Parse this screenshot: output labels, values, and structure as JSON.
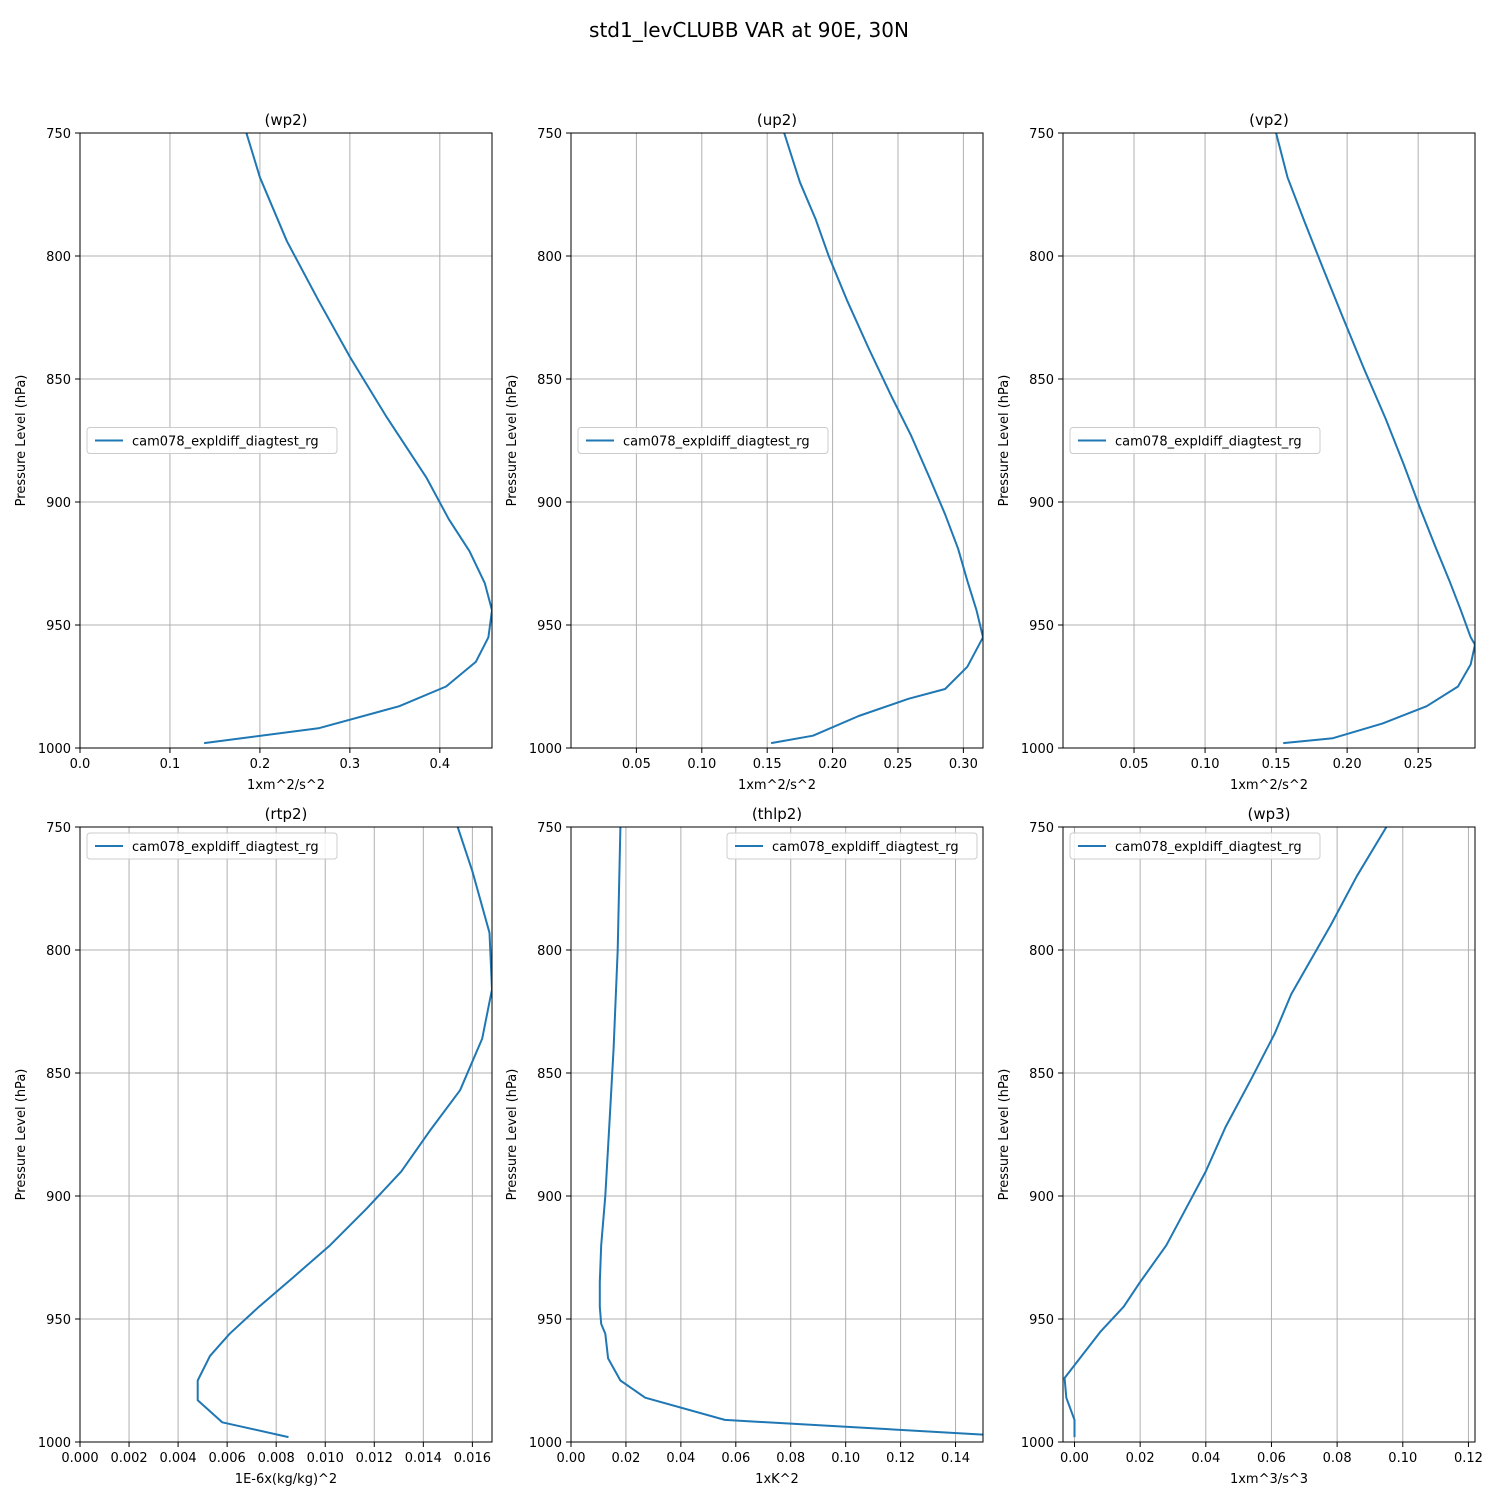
{
  "title": "std1_levCLUBB VAR at 90E, 30N",
  "colors": {
    "series": "#1f77b4",
    "grid": "#b0b0b0"
  },
  "chart_data": [
    {
      "type": "line",
      "title": "(wp2)",
      "xlabel": "1xm^2/s^2",
      "ylabel": "Pressure Level (hPa)",
      "xlim": [
        0.0,
        0.458
      ],
      "ylim": [
        1000,
        750
      ],
      "xticks": [
        0.0,
        0.1,
        0.2,
        0.3,
        0.4
      ],
      "xtick_labels": [
        "0.0",
        "0.1",
        "0.2",
        "0.3",
        "0.4"
      ],
      "yticks": [
        750,
        800,
        850,
        900,
        950,
        1000
      ],
      "ytick_labels": [
        "750",
        "800",
        "850",
        "900",
        "950",
        "1000"
      ],
      "grid": true,
      "legend": "center-left",
      "series": [
        {
          "name": "cam078_expldiff_diagtest_rg",
          "x": [
            0.185,
            0.2,
            0.23,
            0.265,
            0.3,
            0.34,
            0.385,
            0.41,
            0.433,
            0.45,
            0.458,
            0.454,
            0.44,
            0.407,
            0.355,
            0.265,
            0.138
          ],
          "y": [
            750,
            768,
            794,
            818,
            841,
            865,
            890,
            907,
            920,
            933,
            944,
            955,
            965,
            975,
            983,
            992,
            998
          ]
        }
      ]
    },
    {
      "type": "line",
      "title": "(up2)",
      "xlabel": "1xm^2/s^2",
      "ylabel": "Pressure Level (hPa)",
      "xlim": [
        0.0,
        0.315
      ],
      "ylim": [
        1000,
        750
      ],
      "xticks": [
        0.05,
        0.1,
        0.15,
        0.2,
        0.25,
        0.3
      ],
      "xtick_labels": [
        "0.05",
        "0.10",
        "0.15",
        "0.20",
        "0.25",
        "0.30"
      ],
      "yticks": [
        750,
        800,
        850,
        900,
        950,
        1000
      ],
      "ytick_labels": [
        "750",
        "800",
        "850",
        "900",
        "950",
        "1000"
      ],
      "grid": true,
      "legend": "center-left",
      "series": [
        {
          "name": "cam078_expldiff_diagtest_rg",
          "x": [
            0.163,
            0.175,
            0.187,
            0.197,
            0.211,
            0.228,
            0.245,
            0.26,
            0.274,
            0.286,
            0.296,
            0.303,
            0.31,
            0.315,
            0.313,
            0.303,
            0.286,
            0.258,
            0.22,
            0.185,
            0.153
          ],
          "y": [
            750,
            770,
            785,
            800,
            818,
            838,
            857,
            873,
            890,
            905,
            919,
            932,
            944,
            955,
            957,
            967,
            976,
            980,
            987,
            995,
            998
          ]
        }
      ]
    },
    {
      "type": "line",
      "title": "(vp2)",
      "xlabel": "1xm^2/s^2",
      "ylabel": "Pressure Level (hPa)",
      "xlim": [
        0.0,
        0.29
      ],
      "ylim": [
        1000,
        750
      ],
      "xticks": [
        0.05,
        0.1,
        0.15,
        0.2,
        0.25
      ],
      "xtick_labels": [
        "0.05",
        "0.10",
        "0.15",
        "0.20",
        "0.25"
      ],
      "yticks": [
        750,
        800,
        850,
        900,
        950,
        1000
      ],
      "ytick_labels": [
        "750",
        "800",
        "850",
        "900",
        "950",
        "1000"
      ],
      "grid": true,
      "legend": "center-left",
      "series": [
        {
          "name": "cam078_expldiff_diagtest_rg",
          "x": [
            0.15,
            0.158,
            0.17,
            0.183,
            0.197,
            0.212,
            0.227,
            0.24,
            0.251,
            0.262,
            0.272,
            0.28,
            0.287,
            0.29,
            0.287,
            0.278,
            0.256,
            0.225,
            0.19,
            0.155
          ],
          "y": [
            750,
            768,
            786,
            805,
            825,
            846,
            866,
            885,
            902,
            918,
            932,
            944,
            955,
            958,
            966,
            975,
            983,
            990,
            996,
            998
          ]
        }
      ]
    },
    {
      "type": "line",
      "title": "(rtp2)",
      "xlabel": "1E-6x(kg/kg)^2",
      "ylabel": "Pressure Level (hPa)",
      "xlim": [
        0.0,
        0.0168
      ],
      "ylim": [
        1000,
        750
      ],
      "xticks": [
        0.0,
        0.002,
        0.004,
        0.006,
        0.008,
        0.01,
        0.012,
        0.014,
        0.016
      ],
      "xtick_labels": [
        "0.000",
        "0.002",
        "0.004",
        "0.006",
        "0.008",
        "0.010",
        "0.012",
        "0.014",
        "0.016"
      ],
      "yticks": [
        750,
        800,
        850,
        900,
        950,
        1000
      ],
      "ytick_labels": [
        "750",
        "800",
        "850",
        "900",
        "950",
        "1000"
      ],
      "grid": true,
      "legend": "top-left",
      "series": [
        {
          "name": "cam078_expldiff_diagtest_rg",
          "x": [
            0.0154,
            0.016,
            0.0167,
            0.0168,
            0.0164,
            0.0155,
            0.0143,
            0.0131,
            0.0117,
            0.0102,
            0.0087,
            0.0073,
            0.0061,
            0.0053,
            0.0048,
            0.0048,
            0.0058,
            0.0085
          ],
          "y": [
            750,
            768,
            793,
            816,
            836,
            857,
            873,
            890,
            905,
            920,
            933,
            945,
            956,
            965,
            975,
            983,
            992,
            998
          ]
        }
      ]
    },
    {
      "type": "line",
      "title": "(thlp2)",
      "xlabel": "1xK^2",
      "ylabel": "Pressure Level (hPa)",
      "xlim": [
        0.0,
        0.15
      ],
      "ylim": [
        1000,
        750
      ],
      "xticks": [
        0.0,
        0.02,
        0.04,
        0.06,
        0.08,
        0.1,
        0.12,
        0.14
      ],
      "xtick_labels": [
        "0.00",
        "0.02",
        "0.04",
        "0.06",
        "0.08",
        "0.10",
        "0.12",
        "0.14"
      ],
      "yticks": [
        750,
        800,
        850,
        900,
        950,
        1000
      ],
      "ytick_labels": [
        "750",
        "800",
        "850",
        "900",
        "950",
        "1000"
      ],
      "grid": true,
      "legend": "top-right",
      "series": [
        {
          "name": "cam078_expldiff_diagtest_rg",
          "x": [
            0.018,
            0.017,
            0.0155,
            0.014,
            0.0125,
            0.011,
            0.0105,
            0.0105,
            0.011,
            0.0125,
            0.0135,
            0.018,
            0.027,
            0.056,
            0.15
          ],
          "y": [
            750,
            800,
            840,
            870,
            900,
            920,
            935,
            945,
            952,
            956,
            966,
            975,
            982,
            991,
            997
          ]
        }
      ]
    },
    {
      "type": "line",
      "title": "(wp3)",
      "xlabel": "1xm^3/s^3",
      "ylabel": "Pressure Level (hPa)",
      "xlim": [
        -0.0035,
        0.122
      ],
      "ylim": [
        1000,
        750
      ],
      "xticks": [
        0.0,
        0.02,
        0.04,
        0.06,
        0.08,
        0.1,
        0.12
      ],
      "xtick_labels": [
        "0.00",
        "0.02",
        "0.04",
        "0.06",
        "0.08",
        "0.10",
        "0.12"
      ],
      "yticks": [
        750,
        800,
        850,
        900,
        950,
        1000
      ],
      "ytick_labels": [
        "750",
        "800",
        "850",
        "900",
        "950",
        "1000"
      ],
      "grid": true,
      "legend": "top-left",
      "series": [
        {
          "name": "cam078_expldiff_diagtest_rg",
          "x": [
            0.095,
            0.086,
            0.078,
            0.072,
            0.066,
            0.061,
            0.054,
            0.046,
            0.04,
            0.034,
            0.028,
            0.02,
            0.015,
            0.008,
            -0.003,
            -0.0025,
            0.0,
            0.0
          ],
          "y": [
            750,
            770,
            790,
            804,
            818,
            834,
            852,
            872,
            890,
            905,
            920,
            935,
            945,
            955,
            974,
            982,
            991,
            998
          ]
        }
      ]
    }
  ]
}
